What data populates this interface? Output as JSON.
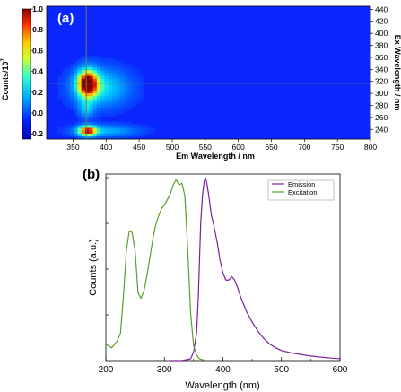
{
  "chart_data": [
    {
      "type": "heatmap",
      "panel_label": "(a)",
      "xlabel": "Em Wavelength / nm",
      "ylabel_right": "Ex Wavelength / nm",
      "colorbar_label": "Counts/10",
      "colorbar_label_sup": "7",
      "xlim": [
        310,
        800
      ],
      "ylim": [
        224,
        445
      ],
      "x_ticks": [
        "350",
        "400",
        "450",
        "500",
        "550",
        "600",
        "650",
        "700",
        "750",
        "800"
      ],
      "y_ticks": [
        "240",
        "260",
        "280",
        "300",
        "320",
        "340",
        "360",
        "380",
        "400",
        "420",
        "440"
      ],
      "colorbar_ticks": [
        "1.0",
        "0.8",
        "0.6",
        "0.4",
        "0.2",
        "0.0",
        "-0.2"
      ],
      "colorbar_range": [
        -0.25,
        1.0
      ],
      "cursor": {
        "em": 370,
        "ex": 317
      },
      "colors": {
        "background": "#0b27ff",
        "cursor": "#6f7a4a"
      },
      "hotspots": [
        {
          "em": 372,
          "ex": 317,
          "em_width": 11,
          "ex_width": 16,
          "intensity": 1.0
        },
        {
          "em": 392,
          "ex": 310,
          "em_width": 30,
          "ex_width": 22,
          "intensity": 0.35
        },
        {
          "em": 372,
          "ex": 238,
          "em_width": 10,
          "ex_width": 6,
          "intensity": 0.85
        },
        {
          "em": 400,
          "ex": 238,
          "em_width": 35,
          "ex_width": 7,
          "intensity": 0.25
        },
        {
          "em": 370,
          "ex": 274,
          "em_width": 8,
          "ex_width": 10,
          "intensity": 0.25
        }
      ]
    },
    {
      "type": "line",
      "panel_label": "(b)",
      "xlabel": "Wavelength (nm)",
      "ylabel": "Counts (a.u.)",
      "xlim": [
        200,
        600
      ],
      "x_ticks": [
        200,
        300,
        400,
        500,
        600
      ],
      "ylim": [
        0,
        1.02
      ],
      "legend_position": "top-right",
      "series": [
        {
          "name": "Emission",
          "color": "#7b1fa2",
          "x": [
            310,
            330,
            345,
            350,
            355,
            358,
            360,
            362,
            365,
            368,
            370,
            372,
            375,
            378,
            380,
            385,
            390,
            395,
            400,
            405,
            410,
            415,
            420,
            425,
            430,
            440,
            450,
            460,
            470,
            480,
            490,
            500,
            520,
            550,
            580,
            600
          ],
          "y": [
            0,
            0,
            0.01,
            0.05,
            0.15,
            0.35,
            0.55,
            0.75,
            0.9,
            0.98,
            1.0,
            0.98,
            0.92,
            0.85,
            0.8,
            0.73,
            0.65,
            0.55,
            0.48,
            0.44,
            0.44,
            0.46,
            0.44,
            0.4,
            0.35,
            0.27,
            0.21,
            0.16,
            0.12,
            0.09,
            0.07,
            0.055,
            0.04,
            0.025,
            0.015,
            0.01
          ]
        },
        {
          "name": "Excitation",
          "color": "#5a9e2a",
          "x": [
            200,
            205,
            210,
            215,
            220,
            225,
            230,
            235,
            240,
            245,
            250,
            255,
            260,
            265,
            270,
            275,
            280,
            285,
            290,
            295,
            300,
            305,
            310,
            315,
            320,
            325,
            330,
            335,
            340,
            345,
            350,
            355,
            360,
            365,
            370
          ],
          "y": [
            0.09,
            0.08,
            0.07,
            0.09,
            0.11,
            0.15,
            0.35,
            0.6,
            0.71,
            0.7,
            0.6,
            0.37,
            0.34,
            0.38,
            0.46,
            0.56,
            0.66,
            0.74,
            0.79,
            0.83,
            0.85,
            0.88,
            0.91,
            0.96,
            0.99,
            0.96,
            0.97,
            0.9,
            0.6,
            0.25,
            0.08,
            0.03,
            0.01,
            0.005,
            0
          ]
        }
      ]
    }
  ]
}
